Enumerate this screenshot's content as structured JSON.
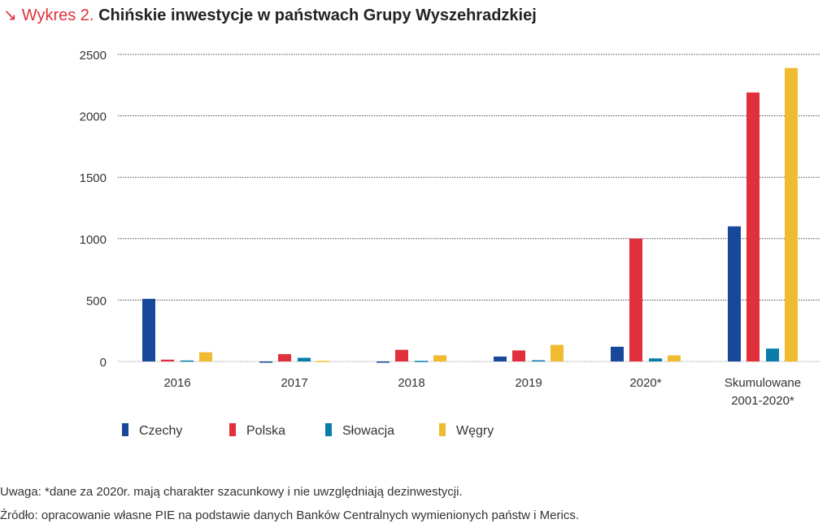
{
  "header": {
    "arrow": "↘",
    "label": "Wykres 2.",
    "title": "Chińskie inwestycje w państwach Grupy Wyszehradzkiej"
  },
  "chart_data": {
    "type": "bar",
    "title": "Chińskie inwestycje w państwach Grupy Wyszehradzkiej",
    "categories": [
      "2016",
      "2017",
      "2018",
      "2019",
      "2020*",
      "Skumulowane|2001-2020*"
    ],
    "series": [
      {
        "name": "Czechy",
        "color": "#17489a",
        "values": [
          510,
          -5,
          -5,
          40,
          120,
          1100
        ]
      },
      {
        "name": "Polska",
        "color": "#e0303b",
        "values": [
          15,
          60,
          95,
          90,
          1000,
          2190
        ]
      },
      {
        "name": "Słowacja",
        "color": "#0a7caa",
        "values": [
          8,
          30,
          5,
          10,
          25,
          105
        ]
      },
      {
        "name": "Węgry",
        "color": "#f0bb30",
        "values": [
          75,
          5,
          50,
          135,
          50,
          2390
        ]
      }
    ],
    "yticks": [
      0,
      500,
      1000,
      1500,
      2000,
      2500
    ],
    "ylim": [
      0,
      2500
    ],
    "grid": true,
    "legend": "bottom-left"
  },
  "notes": {
    "note": "Uwaga: *dane za 2020r. mają charakter szacunkowy i nie uwzględniają dezinwestycji.",
    "source": "Źródło: opracowanie własne PIE na podstawie danych Banków Centralnych wymienionych państw i Merics."
  }
}
